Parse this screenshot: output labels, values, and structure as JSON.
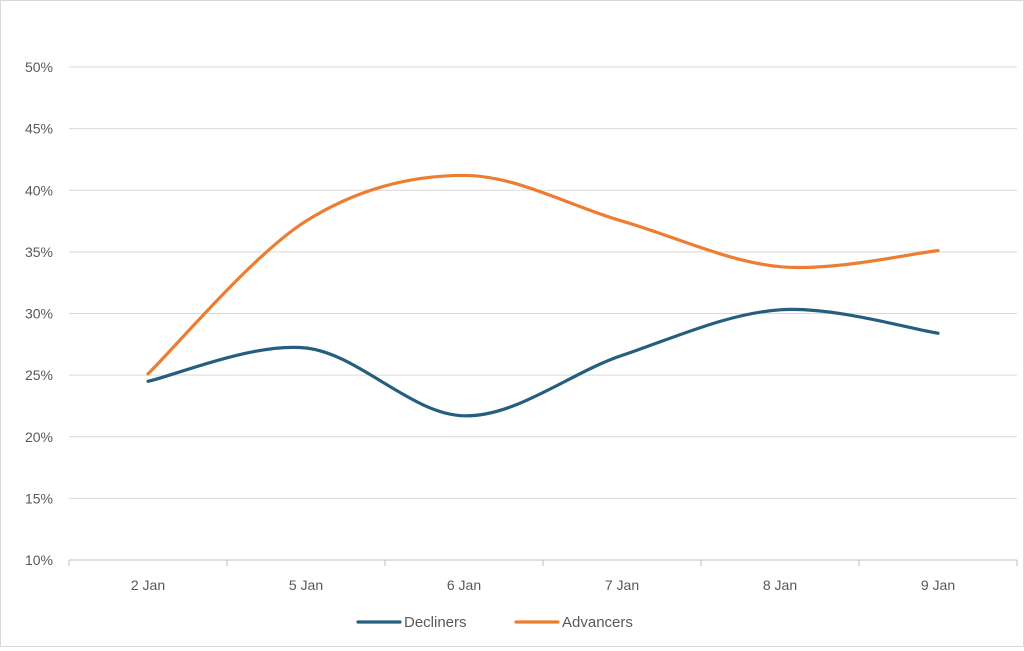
{
  "chart_data": {
    "type": "line",
    "title": "",
    "xlabel": "",
    "ylabel": "",
    "categories": [
      "2 Jan",
      "5 Jan",
      "6 Jan",
      "7 Jan",
      "8 Jan",
      "9 Jan"
    ],
    "ylim": [
      0.1,
      0.5
    ],
    "ytick_values": [
      0.1,
      0.15,
      0.2,
      0.25,
      0.3,
      0.35,
      0.4,
      0.45,
      0.5
    ],
    "ytick_labels": [
      "10%",
      "15%",
      "20%",
      "25%",
      "30%",
      "35%",
      "40%",
      "45%",
      "50%"
    ],
    "grid": true,
    "smooth": true,
    "legend_position": "bottom",
    "series": [
      {
        "name": "Decliners",
        "color": "#255e7e",
        "values": [
          0.245,
          0.272,
          0.217,
          0.266,
          0.303,
          0.284
        ]
      },
      {
        "name": "Advancers",
        "color": "#ed7d31",
        "values": [
          0.251,
          0.375,
          0.412,
          0.375,
          0.338,
          0.351
        ]
      }
    ]
  },
  "colors": {
    "grid": "#d9d9d9",
    "axis": "#bfbfbf",
    "text": "#595959"
  }
}
